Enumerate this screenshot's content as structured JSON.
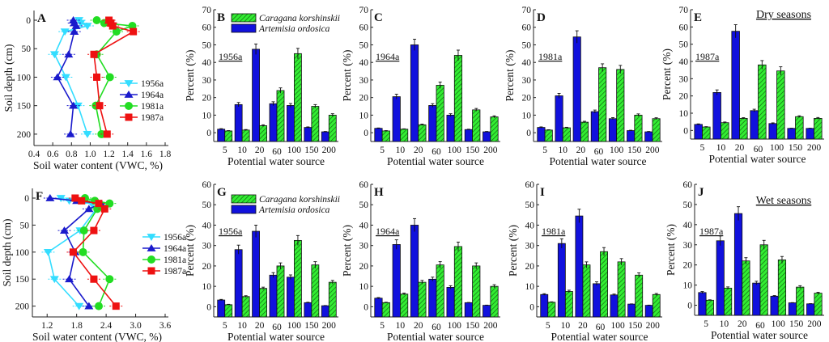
{
  "legend_profiles": [
    {
      "name": "1956a",
      "color": "#33ddff",
      "marker": "triangle-down"
    },
    {
      "name": "1964a",
      "color": "#1a1acc",
      "marker": "triangle-up"
    },
    {
      "name": "1981a",
      "color": "#22dd22",
      "marker": "circle"
    },
    {
      "name": "1987a",
      "color": "#ee1111",
      "marker": "square"
    }
  ],
  "legend_bars": [
    {
      "name": "Caragana korshinskii",
      "color": "#33dd33",
      "pattern": "hatched"
    },
    {
      "name": "Artemisia ordosica",
      "color": "#1111dd",
      "pattern": "solid"
    }
  ],
  "season_labels": {
    "dry": "Dry seasons",
    "wet": "Wet seasons"
  },
  "chart_data": [
    {
      "panel": "A",
      "type": "line",
      "xlabel": "Soil water content (VWC, %)",
      "ylabel": "Soil depth (cm)",
      "xlim": [
        0.4,
        1.8
      ],
      "ylim": [
        0,
        220
      ],
      "y_inverted": true,
      "xticks": [
        "0.4",
        "0.6",
        "0.8",
        "1.0",
        "1.2",
        "1.4",
        "1.6",
        "1.8"
      ],
      "yticks": [
        "0",
        "50",
        "100",
        "150",
        "200"
      ],
      "depths": [
        0,
        5,
        10,
        20,
        60,
        100,
        150,
        200
      ],
      "series": [
        {
          "name": "1956a",
          "values": [
            0.88,
            0.9,
            0.97,
            0.73,
            0.62,
            0.74,
            0.87,
            0.97
          ]
        },
        {
          "name": "1964a",
          "values": [
            0.82,
            0.83,
            0.85,
            0.83,
            0.77,
            0.65,
            0.82,
            0.79
          ]
        },
        {
          "name": "1981a",
          "values": [
            1.07,
            1.15,
            1.45,
            1.28,
            1.07,
            1.21,
            1.06,
            1.12
          ]
        },
        {
          "name": "1987a",
          "values": [
            1.2,
            1.22,
            1.24,
            1.46,
            1.04,
            1.07,
            1.1,
            1.18
          ]
        }
      ],
      "legend": "right"
    },
    {
      "panel": "B",
      "type": "bar",
      "season": "dry",
      "year_label": "1956a",
      "categories": [
        "5",
        "10",
        "20",
        "60",
        "100",
        "150",
        "200"
      ],
      "xlabel": "Potential water source",
      "ylabel": "Percent (%)",
      "ylim": [
        -5,
        70
      ],
      "yticks": [
        "0",
        "10",
        "20",
        "30",
        "40",
        "50",
        "60",
        "70"
      ],
      "series": [
        {
          "name": "Artemisia ordosica",
          "values": [
            2,
            16,
            47.5,
            16.5,
            15.5,
            3,
            0.5
          ],
          "errors": [
            0.3,
            1.2,
            3,
            1.1,
            1.1,
            0.3,
            0.2
          ]
        },
        {
          "name": "Caragana korshinskii",
          "values": [
            1,
            1.5,
            4,
            24,
            45,
            15,
            10
          ],
          "errors": [
            0.2,
            0.3,
            0.5,
            1.5,
            3,
            1,
            0.8
          ]
        }
      ]
    },
    {
      "panel": "C",
      "type": "bar",
      "season": "dry",
      "year_label": "1964a",
      "categories": [
        "5",
        "10",
        "20",
        "60",
        "100",
        "150",
        "200"
      ],
      "xlabel": "Potential water source",
      "ylabel": "Percent (%)",
      "ylim": [
        -5,
        70
      ],
      "yticks": [
        "0",
        "10",
        "20",
        "30",
        "40",
        "50",
        "60",
        "70"
      ],
      "series": [
        {
          "name": "Artemisia ordosica",
          "values": [
            2.5,
            20.5,
            50,
            15.5,
            10,
            1.8,
            0.5
          ],
          "errors": [
            0.2,
            1.4,
            3.2,
            1,
            0.8,
            0.2,
            0.2
          ]
        },
        {
          "name": "Caragana korshinskii",
          "values": [
            1,
            2,
            4.5,
            27,
            44,
            13,
            9
          ],
          "errors": [
            0.2,
            0.2,
            0.4,
            1.8,
            3,
            0.8,
            0.6
          ]
        }
      ]
    },
    {
      "panel": "D",
      "type": "bar",
      "season": "dry",
      "year_label": "1981a",
      "categories": [
        "5",
        "10",
        "20",
        "60",
        "100",
        "150",
        "200"
      ],
      "xlabel": "Potential water source",
      "ylabel": "Percent (%)",
      "ylim": [
        -5,
        70
      ],
      "yticks": [
        "0",
        "10",
        "20",
        "30",
        "40",
        "50",
        "60",
        "70"
      ],
      "series": [
        {
          "name": "Artemisia ordosica",
          "values": [
            3,
            21,
            54.5,
            12,
            8,
            1.2,
            0.5
          ],
          "errors": [
            0.3,
            1.4,
            3.5,
            0.9,
            0.6,
            0.2,
            0.2
          ]
        },
        {
          "name": "Caragana korshinskii",
          "values": [
            1.5,
            2.8,
            6,
            37,
            36,
            10,
            8
          ],
          "errors": [
            0.2,
            0.3,
            0.5,
            2.2,
            2.3,
            0.7,
            0.5
          ]
        }
      ]
    },
    {
      "panel": "E",
      "type": "bar",
      "season": "dry",
      "year_label": "1987a",
      "categories": [
        "5",
        "10",
        "20",
        "60",
        "100",
        "150",
        "200"
      ],
      "xlabel": "Potential water source",
      "ylabel": "Percent (%)",
      "ylim": [
        -5,
        70
      ],
      "yticks": [
        "0",
        "10",
        "20",
        "30",
        "40",
        "50",
        "60",
        "70"
      ],
      "series": [
        {
          "name": "Artemisia ordosica",
          "values": [
            3.5,
            22,
            57.5,
            11.5,
            4,
            1.2,
            1.2
          ],
          "errors": [
            0.3,
            1.5,
            3.8,
            0.8,
            0.4,
            0.1,
            0.1
          ]
        },
        {
          "name": "Caragana korshinskii",
          "values": [
            2,
            4.5,
            7,
            38,
            34.5,
            8,
            7
          ],
          "errors": [
            0.2,
            0.4,
            0.4,
            2.5,
            2.4,
            0.5,
            0.5
          ]
        }
      ]
    },
    {
      "panel": "F",
      "type": "line",
      "xlabel": "Soil water content (VWC, %)",
      "ylabel": "Soil depth (cm)",
      "xlim": [
        0.9,
        3.6
      ],
      "ylim": [
        0,
        220
      ],
      "y_inverted": true,
      "xticks": [
        "1.2",
        "1.8",
        "2.4",
        "3.0",
        "3.6"
      ],
      "yticks": [
        "0",
        "50",
        "100",
        "150",
        "200"
      ],
      "depths": [
        0,
        5,
        10,
        20,
        60,
        100,
        150,
        200
      ],
      "series": [
        {
          "name": "1956a",
          "values": [
            1.48,
            1.65,
            2.1,
            2.2,
            1.87,
            1.22,
            1.35,
            1.85
          ]
        },
        {
          "name": "1964a",
          "values": [
            1.26,
            1.8,
            2.3,
            2.05,
            1.55,
            1.77,
            1.65,
            2.05
          ]
        },
        {
          "name": "1981a",
          "values": [
            1.97,
            2.17,
            2.47,
            2.22,
            1.95,
            1.93,
            2.47,
            2.25
          ]
        },
        {
          "name": "1987a",
          "values": [
            1.77,
            1.9,
            2.25,
            2.37,
            2.15,
            1.73,
            2.15,
            2.6
          ]
        }
      ],
      "legend": "right"
    },
    {
      "panel": "G",
      "type": "bar",
      "season": "wet",
      "year_label": "1956a",
      "categories": [
        "5",
        "10",
        "20",
        "60",
        "100",
        "150",
        "200"
      ],
      "xlabel": "Potential water source",
      "ylabel": "Percent (%)",
      "ylim": [
        -5,
        60
      ],
      "yticks": [
        "0",
        "10",
        "20",
        "30",
        "40",
        "50",
        "60"
      ],
      "series": [
        {
          "name": "Artemisia ordosica",
          "values": [
            3.3,
            28,
            37,
            15.5,
            14.5,
            2,
            0.5
          ],
          "errors": [
            0.3,
            2.2,
            3,
            1.2,
            1.1,
            0.2,
            0.1
          ]
        },
        {
          "name": "Caragana korshinskii",
          "values": [
            1,
            5,
            9,
            20,
            32.5,
            20.5,
            12
          ],
          "errors": [
            0.2,
            0.4,
            0.6,
            1.5,
            2.4,
            1.6,
            0.9
          ]
        }
      ]
    },
    {
      "panel": "H",
      "type": "bar",
      "season": "wet",
      "year_label": "1964a",
      "categories": [
        "5",
        "10",
        "20",
        "60",
        "100",
        "150",
        "200"
      ],
      "xlabel": "Potential water source",
      "ylabel": "Percent (%)",
      "ylim": [
        -5,
        60
      ],
      "yticks": [
        "0",
        "10",
        "20",
        "30",
        "40",
        "50",
        "60"
      ],
      "series": [
        {
          "name": "Artemisia ordosica",
          "values": [
            4.2,
            30.5,
            40,
            13.5,
            9.5,
            2,
            0.7
          ],
          "errors": [
            0.3,
            2.3,
            3.2,
            1,
            0.8,
            0.1,
            0.1
          ]
        },
        {
          "name": "Caragana korshinskii",
          "values": [
            2,
            6.2,
            12,
            20.5,
            29.5,
            20,
            10
          ],
          "errors": [
            0.2,
            0.5,
            0.9,
            1.6,
            2.2,
            1.5,
            0.8
          ]
        }
      ]
    },
    {
      "panel": "I",
      "type": "bar",
      "season": "wet",
      "year_label": "1981a",
      "categories": [
        "5",
        "10",
        "20",
        "60",
        "100",
        "150",
        "200"
      ],
      "xlabel": "Potential water source",
      "ylabel": "Percent (%)",
      "ylim": [
        -5,
        60
      ],
      "yticks": [
        "0",
        "10",
        "20",
        "30",
        "40",
        "50",
        "60"
      ],
      "series": [
        {
          "name": "Artemisia ordosica",
          "values": [
            6,
            31,
            44.5,
            11.3,
            5.8,
            1.3,
            0.7
          ],
          "errors": [
            0.4,
            2.3,
            3.3,
            0.9,
            0.4,
            0.1,
            0.1
          ]
        },
        {
          "name": "Caragana korshinskii",
          "values": [
            2.2,
            7.5,
            20.5,
            27,
            22,
            15.5,
            6
          ],
          "errors": [
            0.2,
            0.6,
            1.5,
            2,
            1.6,
            1.1,
            0.5
          ]
        }
      ]
    },
    {
      "panel": "J",
      "type": "bar",
      "season": "wet",
      "year_label": "1987a",
      "categories": [
        "5",
        "10",
        "20",
        "60",
        "100",
        "150",
        "200"
      ],
      "xlabel": "Potential water source",
      "ylabel": "Percent (%)",
      "ylim": [
        -5,
        60
      ],
      "yticks": [
        "0",
        "10",
        "20",
        "30",
        "40",
        "50",
        "60"
      ],
      "series": [
        {
          "name": "Artemisia ordosica",
          "values": [
            6.3,
            32,
            45.5,
            11,
            4.5,
            1.2,
            0.7
          ],
          "errors": [
            0.5,
            2.4,
            3.4,
            0.9,
            0.3,
            0.1,
            0.1
          ]
        },
        {
          "name": "Caragana korshinskii",
          "values": [
            2.5,
            8.5,
            22,
            30,
            22.5,
            9,
            6
          ],
          "errors": [
            0.2,
            0.6,
            1.6,
            2.2,
            1.7,
            0.7,
            0.4
          ]
        }
      ]
    }
  ]
}
